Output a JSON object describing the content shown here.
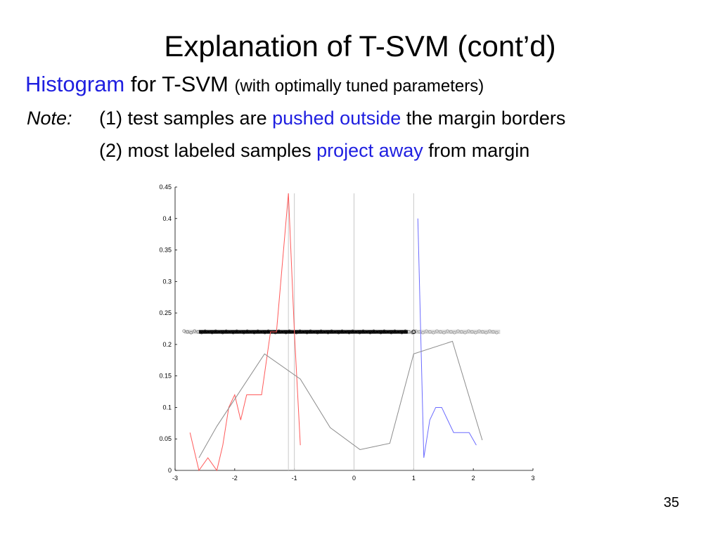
{
  "slide": {
    "title": "Explanation of T-SVM (cont’d)",
    "line1": {
      "highlight": "Histogram",
      "text": " for T-SVM ",
      "small": "(with optimally tuned parameters)"
    },
    "line2": {
      "note_label": "Note:",
      "text_a": "(1) test samples are ",
      "highlight": "pushed outside",
      "text_b": " the margin borders"
    },
    "line3": {
      "text_a": "(2) most labeled samples ",
      "highlight": "project away",
      "text_b": " from margin"
    },
    "page_number": "35"
  },
  "colors": {
    "highlight": "#1f1fe0",
    "red_series": "#ff5a5a",
    "blue_series": "#6b6bff",
    "gray_series": "#8c8c8c",
    "vertical_lines": "#c8c8c8",
    "point_band": "#000000"
  },
  "chart_data": {
    "type": "line",
    "xlim": [
      -3,
      3
    ],
    "ylim": [
      0,
      0.45
    ],
    "x_ticks": [
      "-3",
      "-2",
      "-1",
      "0",
      "1",
      "2",
      "3"
    ],
    "y_ticks": [
      "0",
      "0.05",
      "0.1",
      "0.15",
      "0.2",
      "0.25",
      "0.3",
      "0.35",
      "0.4",
      "0.45"
    ],
    "grid": false,
    "vertical_lines_x": [
      -1.1,
      -1,
      0,
      1
    ],
    "series": [
      {
        "color": "red",
        "x": [
          -2.75,
          -2.6,
          -2.45,
          -2.3,
          -2.2,
          -2.1,
          -2.0,
          -1.9,
          -1.8,
          -1.7,
          -1.55,
          -1.4,
          -1.3,
          -1.1,
          -1.0,
          -0.9
        ],
        "y": [
          0.06,
          0.0,
          0.02,
          0.0,
          0.04,
          0.1,
          0.12,
          0.08,
          0.12,
          0.12,
          0.12,
          0.22,
          0.22,
          0.44,
          0.22,
          0.04
        ]
      },
      {
        "color": "blue",
        "x": [
          1.07,
          1.17,
          1.27,
          1.37,
          1.47,
          1.57,
          1.67,
          1.8,
          1.93,
          2.05
        ],
        "y": [
          0.4,
          0.02,
          0.08,
          0.1,
          0.1,
          0.08,
          0.06,
          0.06,
          0.06,
          0.04
        ]
      },
      {
        "color": "gray",
        "x": [
          -2.6,
          -2.3,
          -1.5,
          -0.9,
          -0.4,
          0.1,
          0.6,
          1.0,
          1.65,
          2.15
        ],
        "y": [
          0.02,
          0.07,
          0.185,
          0.145,
          0.068,
          0.033,
          0.043,
          0.185,
          0.205,
          0.048
        ]
      }
    ],
    "point_band": {
      "y": 0.22,
      "dense_x_range": [
        -2.6,
        0.9
      ],
      "sparse_x_range": [
        -2.85,
        2.45
      ]
    },
    "marker": {
      "x": 1.0,
      "y": 0.22
    }
  }
}
